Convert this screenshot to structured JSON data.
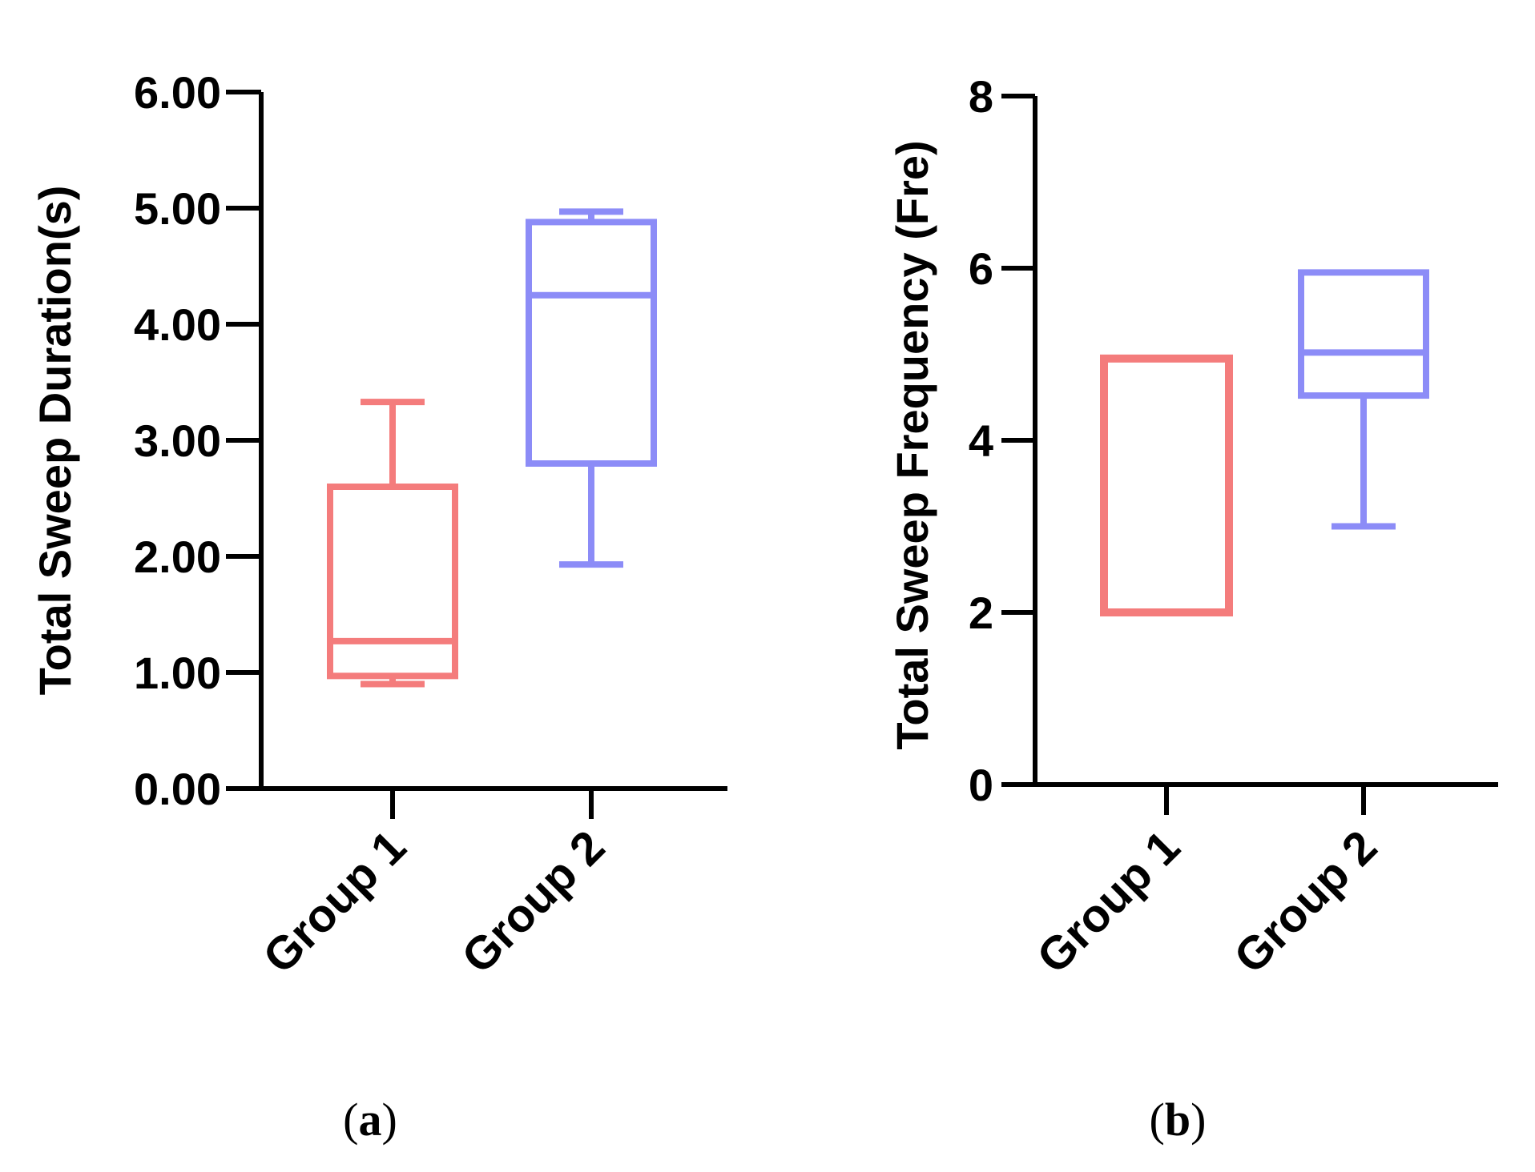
{
  "chart_data": [
    {
      "panel_label": "(a)",
      "panel_label_letter": "a",
      "type": "box",
      "title": "",
      "xlabel": "",
      "ylabel": "Total Sweep Duration(s)",
      "ylim": [
        0,
        6
      ],
      "yticks": [
        0,
        1,
        2,
        3,
        4,
        5,
        6
      ],
      "ytick_labels": [
        "0.00",
        "1.00",
        "2.00",
        "3.00",
        "4.00",
        "5.00",
        "6.00"
      ],
      "categories": [
        "Group 1",
        "Group 2"
      ],
      "series": [
        {
          "name": "Group 1",
          "color": "#f47c7c",
          "min": 0.9,
          "q1": 0.97,
          "median": 1.27,
          "q3": 2.6,
          "max": 3.33
        },
        {
          "name": "Group 2",
          "color": "#8c8cf7",
          "min": 1.93,
          "q1": 2.8,
          "median": 4.25,
          "q3": 4.88,
          "max": 4.97
        }
      ]
    },
    {
      "panel_label": "(b)",
      "panel_label_letter": "b",
      "type": "box",
      "title": "",
      "xlabel": "",
      "ylabel": "Total Sweep Frequency (Fre)",
      "ylim": [
        0,
        8
      ],
      "yticks": [
        0,
        2,
        4,
        6,
        8
      ],
      "ytick_labels": [
        "0",
        "2",
        "4",
        "6",
        "8"
      ],
      "categories": [
        "Group 1",
        "Group 2"
      ],
      "series": [
        {
          "name": "Group 1",
          "color": "#f47c7c",
          "min": 2,
          "q1": 2,
          "median": 2,
          "q3": 4.95,
          "max": 4.95
        },
        {
          "name": "Group 2",
          "color": "#8c8cf7",
          "min": 3,
          "q1": 4.52,
          "median": 5.02,
          "q3": 5.95,
          "max": 5.95
        }
      ]
    }
  ]
}
